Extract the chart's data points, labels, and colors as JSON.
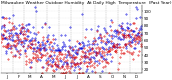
{
  "ylim": [
    15,
    108
  ],
  "yticks": [
    20,
    30,
    40,
    50,
    60,
    70,
    80,
    90,
    100
  ],
  "num_days": 365,
  "seed": 42,
  "blue_color": "#0000dd",
  "red_color": "#dd0000",
  "grid_color": "#999999",
  "bg_color": "#ffffff",
  "title_fontsize": 3.2,
  "tick_fontsize": 3.0,
  "month_days": [
    0,
    31,
    59,
    90,
    120,
    151,
    181,
    212,
    243,
    273,
    304,
    334,
    365
  ],
  "month_labels": [
    "J",
    "F",
    "M",
    "A",
    "M",
    "J",
    "J",
    "A",
    "S",
    "O",
    "N",
    "D"
  ]
}
